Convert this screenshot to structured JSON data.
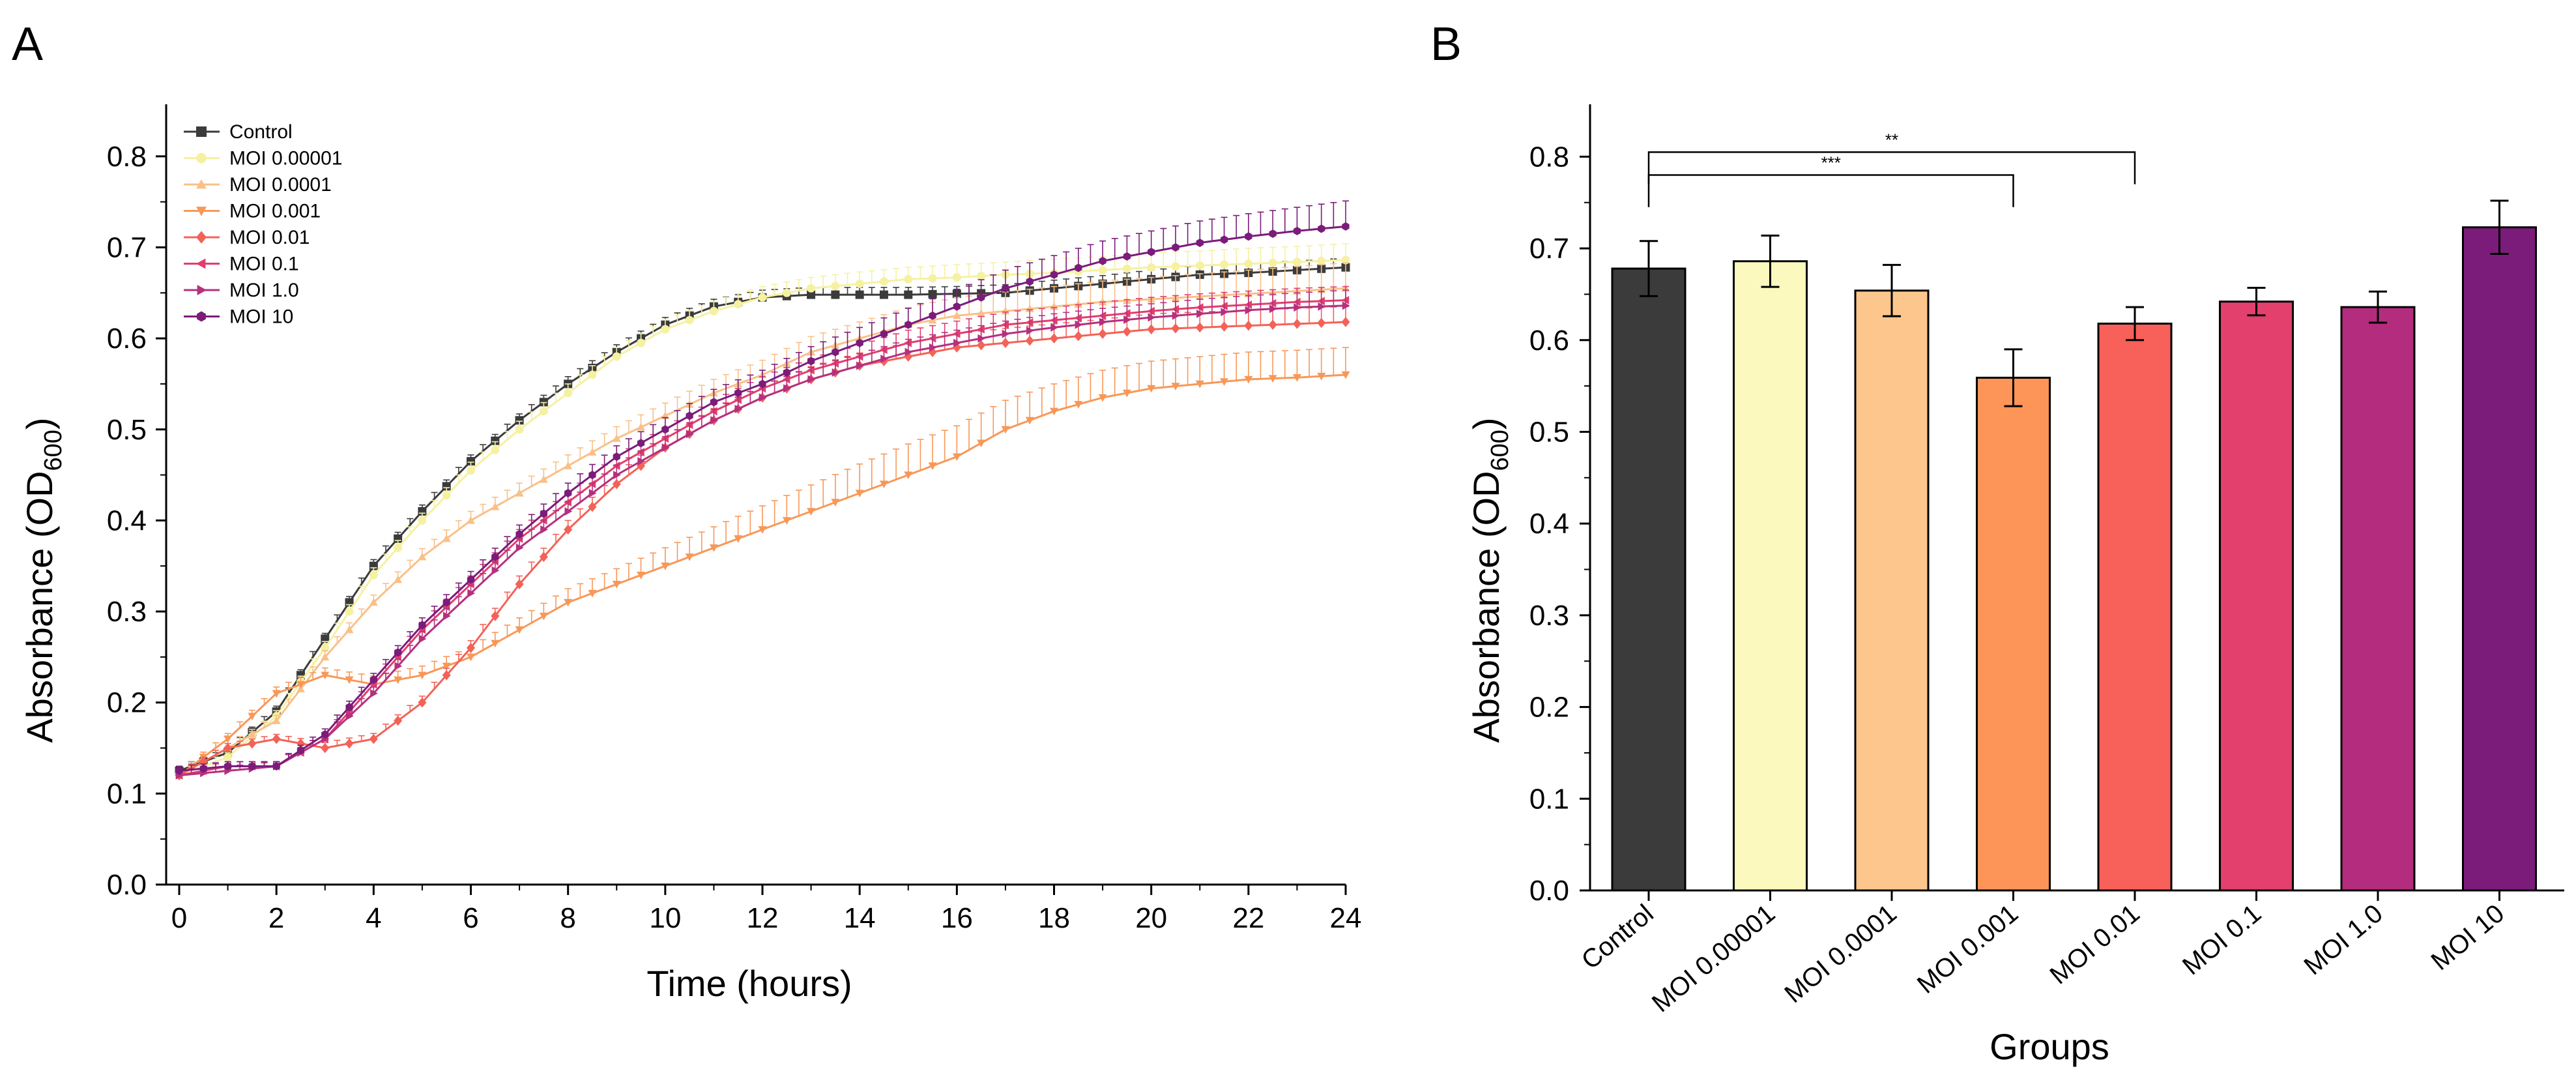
{
  "chart_data": [
    {
      "panel_label": "A",
      "type": "line",
      "title": "",
      "xlabel": "Time (hours)",
      "ylabel_main": "Absorbance (OD",
      "ylabel_sub": "600",
      "ylabel_close": ")",
      "xlim": [
        0,
        24
      ],
      "ylim": [
        0,
        0.85
      ],
      "x_ticks": [
        0,
        2,
        4,
        6,
        8,
        10,
        12,
        14,
        16,
        18,
        20,
        22,
        24
      ],
      "x_tick_labels": [
        "0",
        "2",
        "4",
        "6",
        "8",
        "10",
        "12",
        "14",
        "16",
        "18",
        "20",
        "22",
        "24"
      ],
      "y_ticks": [
        0,
        0.1,
        0.2,
        0.3,
        0.4,
        0.5,
        0.6,
        0.7,
        0.8
      ],
      "y_tick_labels": [
        "0.0",
        "0.1",
        "0.2",
        "0.3",
        "0.4",
        "0.5",
        "0.6",
        "0.7",
        "0.8"
      ],
      "legend_position": "top-left",
      "x": [
        0,
        1,
        2,
        3,
        4,
        5,
        6,
        7,
        8,
        9,
        10,
        11,
        12,
        13,
        14,
        15,
        16,
        17,
        18,
        19,
        20,
        21,
        22,
        23,
        24
      ],
      "series": [
        {
          "name": "Control",
          "color": "#3b3b3b",
          "marker": "square",
          "values": [
            0.125,
            0.145,
            0.19,
            0.27,
            0.35,
            0.41,
            0.465,
            0.51,
            0.55,
            0.585,
            0.615,
            0.635,
            0.645,
            0.648,
            0.648,
            0.648,
            0.649,
            0.65,
            0.655,
            0.66,
            0.665,
            0.67,
            0.672,
            0.675,
            0.678
          ],
          "errors": [
            0.005,
            0.005,
            0.006,
            0.006,
            0.007,
            0.007,
            0.007,
            0.007,
            0.008,
            0.008,
            0.008,
            0.008,
            0.008,
            0.008,
            0.008,
            0.008,
            0.008,
            0.009,
            0.009,
            0.009,
            0.01,
            0.01,
            0.01,
            0.01,
            0.01
          ]
        },
        {
          "name": "MOI 0.00001",
          "color": "#f5f1a2",
          "marker": "circle",
          "values": [
            0.12,
            0.14,
            0.185,
            0.26,
            0.34,
            0.4,
            0.455,
            0.5,
            0.54,
            0.58,
            0.61,
            0.63,
            0.645,
            0.655,
            0.66,
            0.665,
            0.667,
            0.67,
            0.672,
            0.675,
            0.678,
            0.68,
            0.682,
            0.684,
            0.686
          ],
          "errors": [
            0.005,
            0.005,
            0.006,
            0.007,
            0.008,
            0.008,
            0.009,
            0.009,
            0.01,
            0.01,
            0.011,
            0.011,
            0.012,
            0.012,
            0.013,
            0.013,
            0.014,
            0.014,
            0.015,
            0.015,
            0.016,
            0.016,
            0.017,
            0.017,
            0.018
          ]
        },
        {
          "name": "MOI 0.0001",
          "color": "#f9c088",
          "marker": "triangle-up",
          "values": [
            0.12,
            0.15,
            0.18,
            0.25,
            0.31,
            0.36,
            0.4,
            0.43,
            0.46,
            0.49,
            0.515,
            0.54,
            0.56,
            0.585,
            0.6,
            0.615,
            0.625,
            0.63,
            0.635,
            0.64,
            0.643,
            0.646,
            0.649,
            0.652,
            0.655
          ],
          "errors": [
            0.005,
            0.005,
            0.006,
            0.007,
            0.008,
            0.009,
            0.01,
            0.011,
            0.012,
            0.013,
            0.014,
            0.015,
            0.016,
            0.017,
            0.018,
            0.019,
            0.02,
            0.021,
            0.022,
            0.023,
            0.024,
            0.025,
            0.026,
            0.027,
            0.028
          ]
        },
        {
          "name": "MOI 0.001",
          "color": "#f79858",
          "marker": "triangle-down",
          "values": [
            0.12,
            0.16,
            0.21,
            0.23,
            0.22,
            0.23,
            0.25,
            0.28,
            0.31,
            0.33,
            0.35,
            0.37,
            0.39,
            0.41,
            0.43,
            0.45,
            0.47,
            0.5,
            0.52,
            0.535,
            0.545,
            0.55,
            0.555,
            0.557,
            0.56
          ],
          "errors": [
            0.005,
            0.006,
            0.007,
            0.008,
            0.009,
            0.01,
            0.011,
            0.013,
            0.015,
            0.017,
            0.02,
            0.023,
            0.026,
            0.029,
            0.032,
            0.034,
            0.034,
            0.032,
            0.03,
            0.03,
            0.03,
            0.03,
            0.03,
            0.03,
            0.03
          ]
        },
        {
          "name": "MOI 0.01",
          "color": "#f36258",
          "marker": "diamond",
          "values": [
            0.12,
            0.15,
            0.16,
            0.15,
            0.16,
            0.2,
            0.26,
            0.33,
            0.39,
            0.44,
            0.48,
            0.51,
            0.535,
            0.555,
            0.57,
            0.58,
            0.59,
            0.595,
            0.6,
            0.605,
            0.61,
            0.612,
            0.614,
            0.616,
            0.618
          ],
          "errors": [
            0.005,
            0.005,
            0.005,
            0.006,
            0.006,
            0.007,
            0.008,
            0.009,
            0.01,
            0.011,
            0.012,
            0.013,
            0.013,
            0.014,
            0.014,
            0.015,
            0.015,
            0.016,
            0.016,
            0.016,
            0.017,
            0.017,
            0.017,
            0.017,
            0.017
          ]
        },
        {
          "name": "MOI 0.1",
          "color": "#e03e6e",
          "marker": "triangle-left",
          "values": [
            0.12,
            0.13,
            0.13,
            0.16,
            0.22,
            0.28,
            0.33,
            0.38,
            0.42,
            0.46,
            0.49,
            0.52,
            0.545,
            0.565,
            0.58,
            0.595,
            0.605,
            0.615,
            0.62,
            0.625,
            0.63,
            0.634,
            0.637,
            0.64,
            0.642
          ],
          "errors": [
            0.005,
            0.005,
            0.005,
            0.006,
            0.007,
            0.008,
            0.009,
            0.01,
            0.011,
            0.011,
            0.012,
            0.012,
            0.013,
            0.013,
            0.013,
            0.014,
            0.014,
            0.014,
            0.014,
            0.015,
            0.015,
            0.015,
            0.015,
            0.015,
            0.015
          ]
        },
        {
          "name": "MOI 1.0",
          "color": "#b5307e",
          "marker": "triangle-right",
          "values": [
            0.12,
            0.125,
            0.13,
            0.16,
            0.21,
            0.27,
            0.32,
            0.37,
            0.41,
            0.45,
            0.48,
            0.51,
            0.535,
            0.555,
            0.57,
            0.585,
            0.595,
            0.605,
            0.612,
            0.618,
            0.623,
            0.627,
            0.631,
            0.634,
            0.636
          ],
          "errors": [
            0.005,
            0.005,
            0.005,
            0.006,
            0.007,
            0.008,
            0.009,
            0.01,
            0.011,
            0.011,
            0.012,
            0.012,
            0.013,
            0.013,
            0.013,
            0.014,
            0.014,
            0.014,
            0.015,
            0.015,
            0.015,
            0.016,
            0.016,
            0.016,
            0.017
          ]
        },
        {
          "name": "MOI 10",
          "color": "#7b1c7a",
          "marker": "hexagon",
          "values": [
            0.125,
            0.13,
            0.13,
            0.165,
            0.225,
            0.285,
            0.335,
            0.385,
            0.43,
            0.47,
            0.5,
            0.53,
            0.55,
            0.575,
            0.595,
            0.615,
            0.635,
            0.655,
            0.67,
            0.685,
            0.695,
            0.705,
            0.712,
            0.718,
            0.723
          ],
          "errors": [
            0.005,
            0.005,
            0.005,
            0.006,
            0.007,
            0.008,
            0.009,
            0.01,
            0.011,
            0.012,
            0.013,
            0.014,
            0.015,
            0.016,
            0.017,
            0.018,
            0.019,
            0.02,
            0.021,
            0.022,
            0.023,
            0.024,
            0.025,
            0.026,
            0.028
          ]
        }
      ]
    },
    {
      "panel_label": "B",
      "type": "bar",
      "title": "",
      "xlabel": "Groups",
      "ylabel_main": "Absorbance (OD",
      "ylabel_sub": "600",
      "ylabel_close": ")",
      "ylim": [
        0,
        0.85
      ],
      "y_ticks": [
        0,
        0.1,
        0.2,
        0.3,
        0.4,
        0.5,
        0.6,
        0.7,
        0.8
      ],
      "y_tick_labels": [
        "0.0",
        "0.1",
        "0.2",
        "0.3",
        "0.4",
        "0.5",
        "0.6",
        "0.7",
        "0.8"
      ],
      "categories": [
        "Control",
        "MOI 0.00001",
        "MOI 0.0001",
        "MOI 0.001",
        "MOI 0.01",
        "MOI 0.1",
        "MOI 1.0",
        "MOI 10"
      ],
      "values": [
        0.678,
        0.686,
        0.654,
        0.559,
        0.618,
        0.642,
        0.636,
        0.723
      ],
      "errors": [
        0.03,
        0.028,
        0.028,
        0.031,
        0.018,
        0.015,
        0.017,
        0.029
      ],
      "colors": [
        "#3b3b3b",
        "#fbf9bd",
        "#fcc68d",
        "#fc9557",
        "#f8605a",
        "#e3406e",
        "#b42c7e",
        "#7b1c7a"
      ],
      "significance": [
        {
          "from": "Control",
          "to": "MOI 0.001",
          "label": "***",
          "y": 0.78
        },
        {
          "from": "Control",
          "to": "MOI 0.01",
          "label": "**",
          "y": 0.805
        }
      ]
    }
  ]
}
